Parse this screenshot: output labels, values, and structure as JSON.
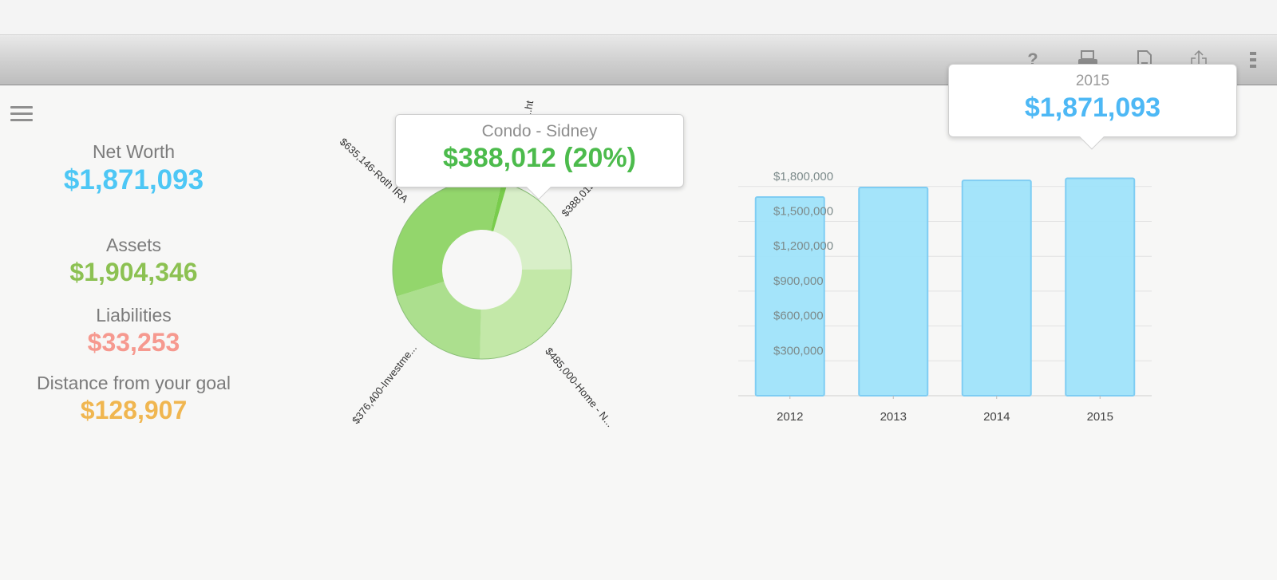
{
  "toolbar": {
    "icons": [
      "help-icon",
      "print-icon",
      "document-icon",
      "share-icon",
      "more-icon"
    ],
    "help_glyph": "?"
  },
  "summary": {
    "net_worth": {
      "label": "Net Worth",
      "value": "$1,871,093",
      "color": "#4dc7f5"
    },
    "assets": {
      "label": "Assets",
      "value": "$1,904,346",
      "color": "#8cc152"
    },
    "liabilities": {
      "label": "Liabilities",
      "value": "$33,253",
      "color": "#f6998f"
    },
    "goal": {
      "label": "Distance from your goal",
      "value": "$128,907",
      "color": "#f0b650"
    }
  },
  "donut_tooltip": {
    "title": "Condo - Sidney",
    "value": "$388,012 (20%)",
    "color": "#4cbb4c"
  },
  "bar_tooltip": {
    "title": "2015",
    "value": "$1,871,093",
    "color": "#4db8f5"
  },
  "chart_data": [
    {
      "type": "pie",
      "donut": true,
      "slices": [
        {
          "label": "$388,012-...",
          "value": 388012
        },
        {
          "label": "$485,000-Home - N...",
          "value": 485000
        },
        {
          "label": "$376,400-Investme...",
          "value": 376400
        },
        {
          "label": "$635,146-Roth IRA",
          "value": 635146
        },
        {
          "label": "...ht",
          "value": 19788
        }
      ],
      "colors": [
        "#d8efc8",
        "#c3e8a8",
        "#acdf8e",
        "#93d66c",
        "#79cc4c"
      ]
    },
    {
      "type": "bar",
      "categories": [
        "2012",
        "2013",
        "2014",
        "2015"
      ],
      "values": [
        1709000,
        1792000,
        1853000,
        1871093
      ],
      "yticks": [
        "$300,000",
        "$600,000",
        "$900,000",
        "$1,200,000",
        "$1,500,000",
        "$1,800,000"
      ],
      "ylim": [
        0,
        1800000
      ],
      "grid": true,
      "color": "#9fe3fa"
    }
  ]
}
